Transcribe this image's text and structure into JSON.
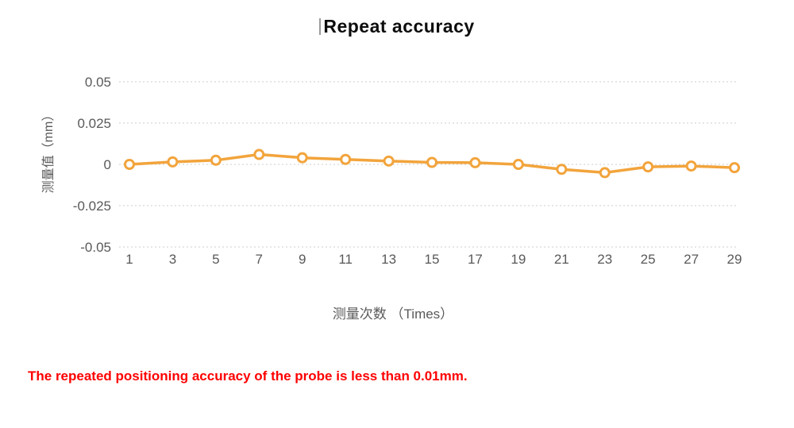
{
  "title": "Repeat accuracy",
  "note": {
    "text": "The repeated positioning accuracy of the probe is less than 0.01mm.",
    "color": "#fe0000"
  },
  "chart_data": {
    "type": "line",
    "title": "Repeat accuracy",
    "xlabel": "测量次数 （Times）",
    "ylabel": "测量值（mm）",
    "x": [
      1,
      3,
      5,
      7,
      9,
      11,
      13,
      15,
      17,
      19,
      21,
      23,
      25,
      27,
      29
    ],
    "values": [
      0,
      0.0015,
      0.0025,
      0.006,
      0.004,
      0.003,
      0.002,
      0.0012,
      0.001,
      0,
      -0.003,
      -0.005,
      -0.0015,
      -0.001,
      -0.002
    ],
    "x_tick_labels": [
      "1",
      "3",
      "5",
      "7",
      "9",
      "11",
      "13",
      "15",
      "17",
      "19",
      "21",
      "23",
      "25",
      "27",
      "29"
    ],
    "y_ticks": [
      0.05,
      0.025,
      0,
      -0.025,
      -0.05
    ],
    "y_tick_labels": [
      "0.05",
      "0.025",
      "0",
      "-0.025",
      "-0.05"
    ],
    "ylim": [
      -0.05,
      0.05
    ],
    "grid": true,
    "legend": false,
    "line_color": "#f2a43c",
    "marker_fill": "#ffffff",
    "grid_color": "#cccccc",
    "tick_label_color": "#595959"
  }
}
